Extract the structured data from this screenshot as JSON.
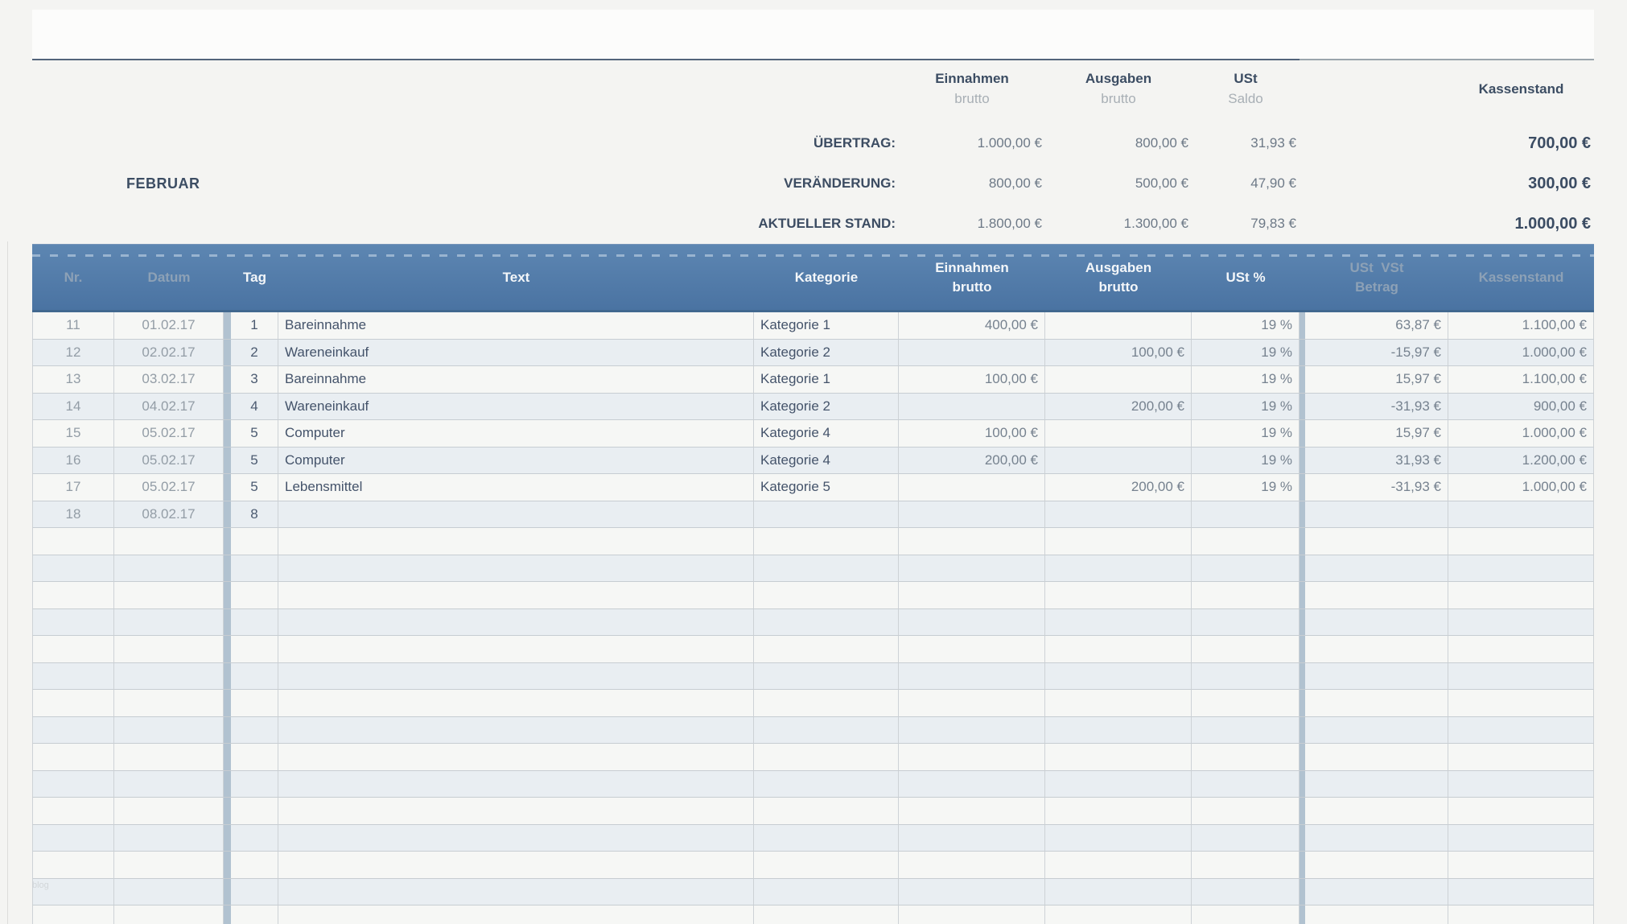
{
  "page": {
    "watermark": "blog"
  },
  "summary": {
    "month": "FEBRUAR",
    "columns": [
      {
        "title": "Einnahmen",
        "subtitle": "brutto"
      },
      {
        "title": "Ausgaben",
        "subtitle": "brutto"
      },
      {
        "title": "USt",
        "subtitle": "Saldo"
      },
      {
        "title": "Kassenstand",
        "subtitle": ""
      }
    ],
    "rows": [
      {
        "label": "ÜBERTRAG:",
        "einnahmen": "1.000,00 €",
        "ausgaben": "800,00 €",
        "ust": "31,93 €",
        "kassenstand": "700,00 €"
      },
      {
        "label": "VERÄNDERUNG:",
        "einnahmen": "800,00 €",
        "ausgaben": "500,00 €",
        "ust": "47,90 €",
        "kassenstand": "300,00 €"
      },
      {
        "label": "AKTUELLER STAND:",
        "einnahmen": "1.800,00 €",
        "ausgaben": "1.300,00 €",
        "ust": "79,83 €",
        "kassenstand": "1.000,00 €"
      }
    ]
  },
  "table": {
    "header": {
      "nr": "Nr.",
      "datum": "Datum",
      "tag": "Tag",
      "text": "Text",
      "kategorie": "Kategorie",
      "einnahmen_1": "Einnahmen",
      "einnahmen_2": "brutto",
      "ausgaben_1": "Ausgaben",
      "ausgaben_2": "brutto",
      "ust": "USt %",
      "betrag_1": "USt  VSt",
      "betrag_2": "Betrag",
      "kassenstand": "Kassenstand"
    },
    "rows": [
      {
        "nr": "11",
        "datum": "01.02.17",
        "tag": "1",
        "text": "Bareinnahme",
        "kategorie": "Kategorie 1",
        "einnahmen": "400,00 €",
        "ausgaben": "",
        "ust": "19 %",
        "betrag": "63,87 €",
        "kassenstand": "1.100,00 €"
      },
      {
        "nr": "12",
        "datum": "02.02.17",
        "tag": "2",
        "text": "Wareneinkauf",
        "kategorie": "Kategorie 2",
        "einnahmen": "",
        "ausgaben": "100,00 €",
        "ust": "19 %",
        "betrag": "-15,97 €",
        "kassenstand": "1.000,00 €"
      },
      {
        "nr": "13",
        "datum": "03.02.17",
        "tag": "3",
        "text": "Bareinnahme",
        "kategorie": "Kategorie 1",
        "einnahmen": "100,00 €",
        "ausgaben": "",
        "ust": "19 %",
        "betrag": "15,97 €",
        "kassenstand": "1.100,00 €"
      },
      {
        "nr": "14",
        "datum": "04.02.17",
        "tag": "4",
        "text": "Wareneinkauf",
        "kategorie": "Kategorie 2",
        "einnahmen": "",
        "ausgaben": "200,00 €",
        "ust": "19 %",
        "betrag": "-31,93 €",
        "kassenstand": "900,00 €"
      },
      {
        "nr": "15",
        "datum": "05.02.17",
        "tag": "5",
        "text": "Computer",
        "kategorie": "Kategorie 4",
        "einnahmen": "100,00 €",
        "ausgaben": "",
        "ust": "19 %",
        "betrag": "15,97 €",
        "kassenstand": "1.000,00 €"
      },
      {
        "nr": "16",
        "datum": "05.02.17",
        "tag": "5",
        "text": "Computer",
        "kategorie": "Kategorie 4",
        "einnahmen": "200,00 €",
        "ausgaben": "",
        "ust": "19 %",
        "betrag": "31,93 €",
        "kassenstand": "1.200,00 €"
      },
      {
        "nr": "17",
        "datum": "05.02.17",
        "tag": "5",
        "text": "Lebensmittel",
        "kategorie": "Kategorie 5",
        "einnahmen": "",
        "ausgaben": "200,00 €",
        "ust": "19 %",
        "betrag": "-31,93 €",
        "kassenstand": "1.000,00 €"
      },
      {
        "nr": "18",
        "datum": "08.02.17",
        "tag": "8",
        "text": "",
        "kategorie": "",
        "einnahmen": "",
        "ausgaben": "",
        "ust": "",
        "betrag": "",
        "kassenstand": ""
      }
    ],
    "empty_rows": 15
  }
}
